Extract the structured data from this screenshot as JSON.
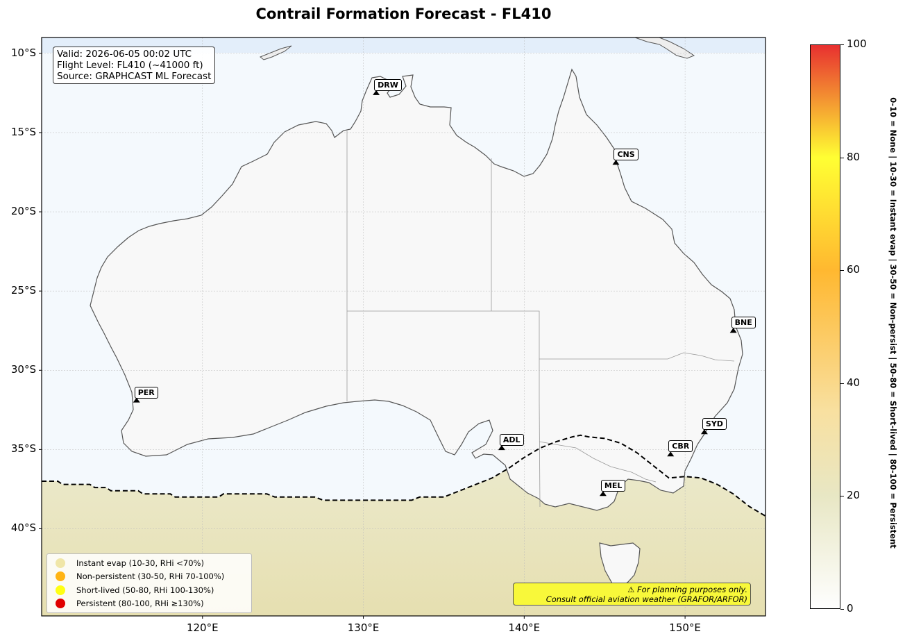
{
  "title": "Contrail Formation Forecast - FL410",
  "info": {
    "valid": "Valid: 2026-06-05 00:02 UTC",
    "flight_level": "Flight Level: FL410 (~41000 ft)",
    "source": "Source: GRAPHCAST ML Forecast"
  },
  "map": {
    "lon_range": [
      110,
      155
    ],
    "lat_range": [
      -45.5,
      -9
    ],
    "lat_ticks": [
      {
        "lat": -10,
        "label": "10°S"
      },
      {
        "lat": -15,
        "label": "15°S"
      },
      {
        "lat": -20,
        "label": "20°S"
      },
      {
        "lat": -25,
        "label": "25°S"
      },
      {
        "lat": -30,
        "label": "30°S"
      },
      {
        "lat": -35,
        "label": "35°S"
      },
      {
        "lat": -40,
        "label": "40°S"
      }
    ],
    "lon_ticks": [
      {
        "lon": 120,
        "label": "120°E"
      },
      {
        "lon": 130,
        "label": "130°E"
      },
      {
        "lon": 140,
        "label": "140°E"
      },
      {
        "lon": 150,
        "label": "150°E"
      }
    ],
    "colors": {
      "ocean": "#f4f9fd",
      "land": "#f8f8f8",
      "coast": "#555555",
      "contrail_zone": "#e8e7c4",
      "threshold_line": "#000000"
    },
    "contrail_boundary": [
      [
        110,
        -37.0
      ],
      [
        111,
        -37.0
      ],
      [
        111.3,
        -37.2
      ],
      [
        113,
        -37.2
      ],
      [
        113.3,
        -37.4
      ],
      [
        114,
        -37.4
      ],
      [
        114.3,
        -37.6
      ],
      [
        116,
        -37.6
      ],
      [
        116.3,
        -37.8
      ],
      [
        118,
        -37.8
      ],
      [
        118.3,
        -38.0
      ],
      [
        121,
        -38.0
      ],
      [
        121.3,
        -37.8
      ],
      [
        124,
        -37.8
      ],
      [
        124.5,
        -38.0
      ],
      [
        127,
        -38.0
      ],
      [
        127.5,
        -38.2
      ],
      [
        133,
        -38.2
      ],
      [
        133.5,
        -38.0
      ],
      [
        135,
        -38.0
      ],
      [
        136,
        -37.6
      ],
      [
        138,
        -36.8
      ],
      [
        139,
        -36.2
      ],
      [
        140,
        -35.5
      ],
      [
        141,
        -34.9
      ],
      [
        142,
        -34.5
      ],
      [
        143,
        -34.2
      ],
      [
        143.5,
        -34.1
      ],
      [
        144,
        -34.2
      ],
      [
        145,
        -34.3
      ],
      [
        146,
        -34.6
      ],
      [
        147,
        -35.2
      ],
      [
        148,
        -36.0
      ],
      [
        149,
        -36.8
      ],
      [
        150,
        -36.7
      ],
      [
        151,
        -36.8
      ],
      [
        152,
        -37.2
      ],
      [
        153,
        -37.8
      ],
      [
        154,
        -38.6
      ],
      [
        155,
        -39.2
      ]
    ],
    "cities": [
      {
        "code": "DRW",
        "lon": 130.8,
        "lat": -12.5
      },
      {
        "code": "CNS",
        "lon": 145.7,
        "lat": -16.9
      },
      {
        "code": "BNE",
        "lon": 153.0,
        "lat": -27.5
      },
      {
        "code": "PER",
        "lon": 115.9,
        "lat": -31.9
      },
      {
        "code": "ADL",
        "lon": 138.6,
        "lat": -34.9
      },
      {
        "code": "SYD",
        "lon": 151.2,
        "lat": -33.9
      },
      {
        "code": "CBR",
        "lon": 149.1,
        "lat": -35.3
      },
      {
        "code": "MEL",
        "lon": 144.9,
        "lat": -37.8
      }
    ]
  },
  "legend": [
    {
      "label": "Instant evap (10-30, RHi <70%)",
      "color": "#f0e6a8"
    },
    {
      "label": "Non-persistent (30-50, RHi 70-100%)",
      "color": "#ffb414"
    },
    {
      "label": "Short-lived (50-80, RHi 100-130%)",
      "color": "#ffff14"
    },
    {
      "label": "Persistent (80-100, RHi ≥130%)",
      "color": "#e00000"
    }
  ],
  "disclaimer": {
    "line1": "⚠ For planning purposes only.",
    "line2": "Consult official aviation weather (GRAFOR/ARFOR)"
  },
  "colorbar": {
    "min": 0,
    "max": 100,
    "ticks": [
      {
        "value": 0,
        "label": "0"
      },
      {
        "value": 20,
        "label": "20"
      },
      {
        "value": 40,
        "label": "40"
      },
      {
        "value": 60,
        "label": "60"
      },
      {
        "value": 80,
        "label": "80"
      },
      {
        "value": 100,
        "label": "100"
      }
    ],
    "stops": [
      {
        "value": 0,
        "color": "#fefefe"
      },
      {
        "value": 20,
        "color": "#e8e7c4"
      },
      {
        "value": 35,
        "color": "#f8e0a0"
      },
      {
        "value": 60,
        "color": "#ffb830"
      },
      {
        "value": 80,
        "color": "#ffff33"
      },
      {
        "value": 100,
        "color": "#e83030"
      }
    ],
    "caption": "0-10 = None  |  10-30 = Instant evap  |  30-50 = Non-persist  |  50-80 = Short-lived  |  80-100 = Persistent"
  }
}
